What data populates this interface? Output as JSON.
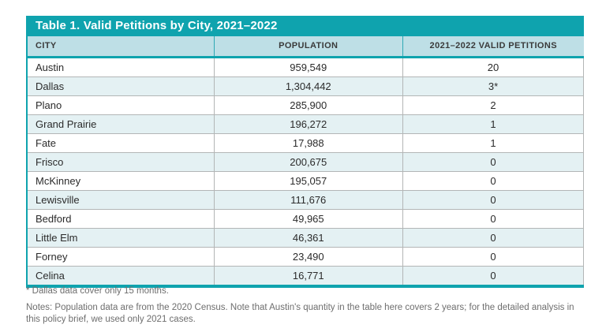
{
  "colors": {
    "accent_teal": "#0fa3ae",
    "header_row_bg": "#bedfe6",
    "stripe_row_bg": "#e4f1f3",
    "grid_line": "#b3b6b6",
    "body_text": "#2b2b2b",
    "note_text": "#6e6e6e"
  },
  "chart_data": {
    "type": "table",
    "title": "Table 1. Valid Petitions by City, 2021–2022",
    "columns": [
      "CITY",
      "POPULATION",
      "2021–2022 VALID PETITIONS"
    ],
    "rows": [
      [
        "Austin",
        "959,549",
        "20"
      ],
      [
        "Dallas",
        "1,304,442",
        "3*"
      ],
      [
        "Plano",
        "285,900",
        "2"
      ],
      [
        "Grand Prairie",
        "196,272",
        "1"
      ],
      [
        "Fate",
        "17,988",
        "1"
      ],
      [
        "Frisco",
        "200,675",
        "0"
      ],
      [
        "McKinney",
        "195,057",
        "0"
      ],
      [
        "Lewisville",
        "111,676",
        "0"
      ],
      [
        "Bedford",
        "49,965",
        "0"
      ],
      [
        "Little Elm",
        "46,361",
        "0"
      ],
      [
        "Forney",
        "23,490",
        "0"
      ],
      [
        "Celina",
        "16,771",
        "0"
      ]
    ],
    "footnotes": [
      "* Dallas data cover only 15 months.",
      "Notes: Population data are from the 2020 Census. Note that Austin's quantity in the table here covers 2 years; for the detailed analysis in this policy brief, we used only 2021 cases."
    ],
    "layout_hints": {
      "title_bar": "teal background, white bold text",
      "header_row": "light blue background, centered numeric columns",
      "stripes": "even rows tinted light teal",
      "alignment": [
        "left",
        "center",
        "center"
      ]
    }
  }
}
